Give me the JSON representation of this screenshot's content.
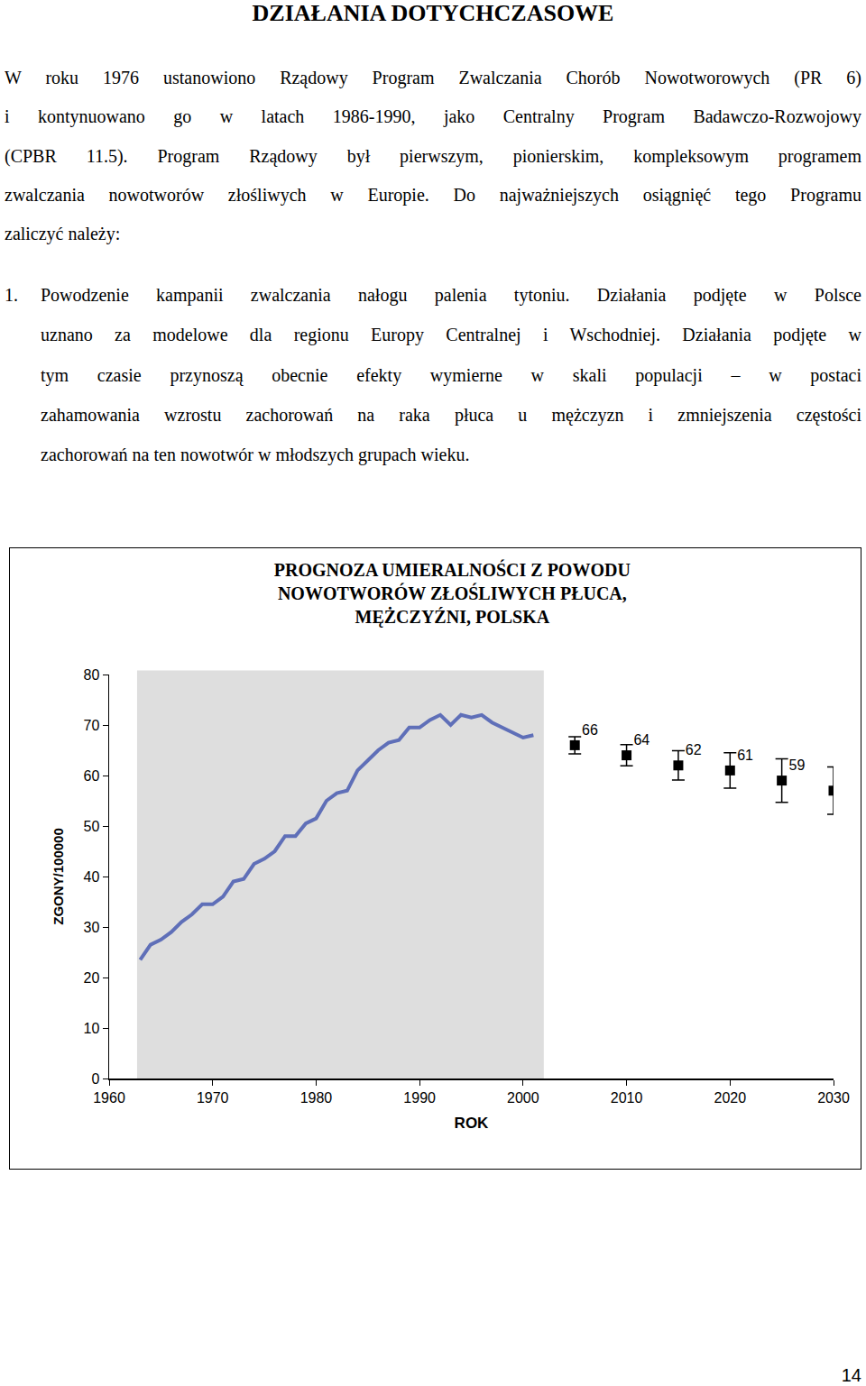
{
  "heading": "DZIAŁANIA DOTYCHCZASOWE",
  "paragraph_lines": [
    "W roku 1976 ustanowiono Rządowy Program Zwalczania Chorób Nowotworowych (PR 6)",
    "i kontynuowano go w latach 1986-1990, jako Centralny Program Badawczo-Rozwojowy",
    "(CPBR 11.5). Program Rządowy był pierwszym, pionierskim, kompleksowym programem",
    "zwalczania nowotworów złośliwych w Europie. Do najważniejszych osiągnięć tego Programu",
    "zaliczyć należy:"
  ],
  "list": [
    {
      "number": "1.",
      "lines": [
        "Powodzenie kampanii zwalczania nałogu palenia tytoniu. Działania podjęte w Polsce",
        "uznano za modelowe dla regionu Europy Centralnej i Wschodniej. Działania podjęte w",
        "tym czasie przynoszą obecnie efekty wymierne w skali populacji – w postaci",
        "zahamowania wzrostu zachorowań na raka płuca u mężczyzn i zmniejszenia częstości",
        "zachorowań na ten nowotwór w młodszych grupach wieku."
      ]
    }
  ],
  "chart_data": {
    "type": "line",
    "title": "PROGNOZA UMIERALNOŚCI Z POWODU\nNOWOTWORÓW ZŁOŚLIWYCH PŁUCA,\nMĘŻCZYŹNI, POLSKA",
    "x_label": "ROK",
    "y_label": "ZGONY/100000",
    "xlim": [
      1960,
      2030
    ],
    "xticks": [
      1960,
      1970,
      1980,
      1990,
      2000,
      2010,
      2020,
      2030
    ],
    "ylim": [
      0,
      80
    ],
    "yticks": [
      0,
      10,
      20,
      30,
      40,
      50,
      60,
      70,
      80
    ],
    "grid": false,
    "series": [
      {
        "type": "line",
        "color": "#5f6fb8",
        "x": [
          1963,
          1964,
          1965,
          1966,
          1967,
          1968,
          1969,
          1970,
          1971,
          1972,
          1973,
          1974,
          1975,
          1976,
          1977,
          1978,
          1979,
          1980,
          1981,
          1982,
          1983,
          1984,
          1985,
          1986,
          1987,
          1988,
          1989,
          1990,
          1991,
          1992,
          1993,
          1994,
          1995,
          1996,
          1997,
          1998,
          1999,
          2000,
          2001
        ],
        "values": [
          23.5,
          26.5,
          27.5,
          29,
          31,
          32.5,
          34.5,
          34.5,
          36,
          39,
          39.5,
          42.5,
          43.5,
          45,
          48,
          48,
          50.5,
          51.5,
          55,
          56.5,
          57,
          61,
          63,
          65,
          66.5,
          67,
          69.5,
          69.5,
          71,
          72,
          70,
          72,
          71.5,
          72,
          70.5,
          69.5,
          68.5,
          67.5,
          68
        ]
      },
      {
        "type": "scatter",
        "color": "#000000",
        "marker": "square",
        "data_labels": true,
        "x": [
          2005,
          2010,
          2015,
          2020,
          2025,
          2030
        ],
        "values": [
          66,
          64,
          62,
          61,
          59,
          57
        ],
        "error": [
          1.7,
          2.1,
          2.9,
          3.5,
          4.3,
          4.7
        ]
      }
    ]
  },
  "page_number": "14"
}
